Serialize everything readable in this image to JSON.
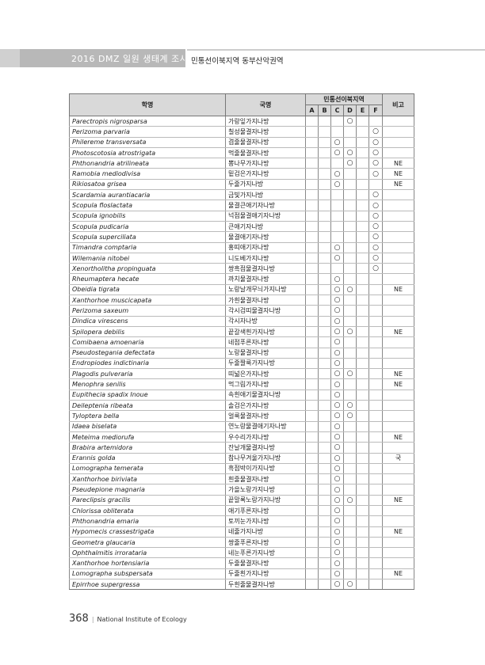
{
  "header": {
    "title": "2016 DMZ 일원 생태계 조사",
    "subtitle": "민통선이북지역 동부산악권역"
  },
  "table": {
    "col_scientific": "학명",
    "col_korean": "국명",
    "col_region": "민통선이북지역",
    "col_note": "비고",
    "sites": [
      "A",
      "B",
      "C",
      "D",
      "E",
      "F"
    ],
    "rows": [
      {
        "sci": "Parectropis nigrosparsa",
        "kor": "가랑잎가지나방",
        "marks": [
          "",
          "",
          "",
          "○",
          "",
          ""
        ],
        "note": ""
      },
      {
        "sci": "Perizoma parvaria",
        "kor": "칠성물결자나방",
        "marks": [
          "",
          "",
          "",
          "",
          "",
          "○"
        ],
        "note": ""
      },
      {
        "sci": "Philereme transversata",
        "kor": "겹줄물결자나방",
        "marks": [
          "",
          "",
          "○",
          "",
          "",
          "○"
        ],
        "note": ""
      },
      {
        "sci": "Photoscotosia atrostrigata",
        "kor": "먹줄물결자나방",
        "marks": [
          "",
          "",
          "○",
          "○",
          "",
          "○"
        ],
        "note": ""
      },
      {
        "sci": "Phthonandria atrilineata",
        "kor": "뽕나무가지나방",
        "marks": [
          "",
          "",
          "",
          "○",
          "",
          "○"
        ],
        "note": "NE"
      },
      {
        "sci": "Ramobia mediodivisa",
        "kor": "밑검은가지나방",
        "marks": [
          "",
          "",
          "○",
          "",
          "",
          "○"
        ],
        "note": "NE"
      },
      {
        "sci": "Rikiosatoa grisea",
        "kor": "두줄가지나방",
        "marks": [
          "",
          "",
          "○",
          "",
          "",
          ""
        ],
        "note": "NE"
      },
      {
        "sci": "Scardamia aurantiacaria",
        "kor": "금빛가지나방",
        "marks": [
          "",
          "",
          "",
          "",
          "",
          "○"
        ],
        "note": ""
      },
      {
        "sci": "Scopula floslactata",
        "kor": "물결큰애기자나방",
        "marks": [
          "",
          "",
          "",
          "",
          "",
          "○"
        ],
        "note": ""
      },
      {
        "sci": "Scopula ignobilis",
        "kor": "넉점물결애기자나방",
        "marks": [
          "",
          "",
          "",
          "",
          "",
          "○"
        ],
        "note": ""
      },
      {
        "sci": "Scopula pudicaria",
        "kor": "큰애기자나방",
        "marks": [
          "",
          "",
          "",
          "",
          "",
          "○"
        ],
        "note": ""
      },
      {
        "sci": "Scopula superciliata",
        "kor": "물결애기자나방",
        "marks": [
          "",
          "",
          "",
          "",
          "",
          "○"
        ],
        "note": ""
      },
      {
        "sci": "Timandra comptaria",
        "kor": "홍띠애기자나방",
        "marks": [
          "",
          "",
          "○",
          "",
          "",
          "○"
        ],
        "note": ""
      },
      {
        "sci": "Wilemania nitobei",
        "kor": "니도베가지나방",
        "marks": [
          "",
          "",
          "○",
          "",
          "",
          "○"
        ],
        "note": ""
      },
      {
        "sci": "Xenortholitha propinguata",
        "kor": "쌍흑점물결자나방",
        "marks": [
          "",
          "",
          "",
          "",
          "",
          "○"
        ],
        "note": ""
      },
      {
        "sci": "Rheumaptera hecate",
        "kor": "까치물결자나방",
        "marks": [
          "",
          "",
          "○",
          "",
          "",
          ""
        ],
        "note": ""
      },
      {
        "sci": "Obeidia tigrata",
        "kor": "노랑날개무늬가지나방",
        "marks": [
          "",
          "",
          "○",
          "○",
          "",
          ""
        ],
        "note": "NE"
      },
      {
        "sci": "Xanthorhoe muscicapata",
        "kor": "가흰물결자나방",
        "marks": [
          "",
          "",
          "○",
          "",
          "",
          ""
        ],
        "note": ""
      },
      {
        "sci": "Perizoma saxeum",
        "kor": "각시검띠물결자나방",
        "marks": [
          "",
          "",
          "○",
          "",
          "",
          ""
        ],
        "note": ""
      },
      {
        "sci": "Dindica virescens",
        "kor": "각시자나방",
        "marks": [
          "",
          "",
          "○",
          "",
          "",
          ""
        ],
        "note": ""
      },
      {
        "sci": "Spilopera debilis",
        "kor": "끝갈색흰가지나방",
        "marks": [
          "",
          "",
          "○",
          "○",
          "",
          ""
        ],
        "note": "NE"
      },
      {
        "sci": "Comibaena amoenaria",
        "kor": "네점푸른자나방",
        "marks": [
          "",
          "",
          "○",
          "",
          "",
          ""
        ],
        "note": ""
      },
      {
        "sci": "Pseudostegania defectata",
        "kor": "노랑물결자나방",
        "marks": [
          "",
          "",
          "○",
          "",
          "",
          ""
        ],
        "note": ""
      },
      {
        "sci": "Endropiodes indictinaria",
        "kor": "두줄짤룩가지나방",
        "marks": [
          "",
          "",
          "○",
          "",
          "",
          ""
        ],
        "note": ""
      },
      {
        "sci": "Plagodis pulveraria",
        "kor": "띠넓은가지나방",
        "marks": [
          "",
          "",
          "○",
          "○",
          "",
          ""
        ],
        "note": "NE"
      },
      {
        "sci": "Menophra senilis",
        "kor": "먹그림가지나방",
        "marks": [
          "",
          "",
          "○",
          "",
          "",
          ""
        ],
        "note": "NE"
      },
      {
        "sci": "Eupithecia spadix Inoue",
        "kor": "속흰애기물결자나방",
        "marks": [
          "",
          "",
          "○",
          "",
          "",
          ""
        ],
        "note": ""
      },
      {
        "sci": "Deileptenia ribeata",
        "kor": "솔검은가지나방",
        "marks": [
          "",
          "",
          "○",
          "○",
          "",
          ""
        ],
        "note": ""
      },
      {
        "sci": "Tyloptera bella",
        "kor": "얼룩물결자나방",
        "marks": [
          "",
          "",
          "○",
          "○",
          "",
          ""
        ],
        "note": ""
      },
      {
        "sci": "Idaea biselata",
        "kor": "연노랑물결애기자나방",
        "marks": [
          "",
          "",
          "○",
          "",
          "",
          ""
        ],
        "note": ""
      },
      {
        "sci": "Meteima mediorufa",
        "kor": "우수리가지나방",
        "marks": [
          "",
          "",
          "○",
          "",
          "",
          ""
        ],
        "note": "NE"
      },
      {
        "sci": "Brabira artemidora",
        "kor": "잔날개물결자나방",
        "marks": [
          "",
          "",
          "○",
          "",
          "",
          ""
        ],
        "note": ""
      },
      {
        "sci": "Erannis golda",
        "kor": "참나무겨울가지나방",
        "marks": [
          "",
          "",
          "○",
          "",
          "",
          ""
        ],
        "note": "국"
      },
      {
        "sci": "Lomographa temerata",
        "kor": "흑점박이가지나방",
        "marks": [
          "",
          "",
          "○",
          "",
          "",
          ""
        ],
        "note": ""
      },
      {
        "sci": "Xanthorhoe biriviata",
        "kor": "흰줄물결자나방",
        "marks": [
          "",
          "",
          "○",
          "",
          "",
          ""
        ],
        "note": ""
      },
      {
        "sci": "Pseudepione magnaria",
        "kor": "가을노랑가지나방",
        "marks": [
          "",
          "",
          "○",
          "",
          "",
          ""
        ],
        "note": ""
      },
      {
        "sci": "Pareclipsis gracilis",
        "kor": "끝말록노랑가지나방",
        "marks": [
          "",
          "",
          "○",
          "○",
          "",
          ""
        ],
        "note": "NE"
      },
      {
        "sci": "Chlorissa obliterata",
        "kor": "애기푸른자나방",
        "marks": [
          "",
          "",
          "○",
          "",
          "",
          ""
        ],
        "note": ""
      },
      {
        "sci": "Phthonandria emaria",
        "kor": "토끼눈가지나방",
        "marks": [
          "",
          "",
          "○",
          "",
          "",
          ""
        ],
        "note": ""
      },
      {
        "sci": "Hypomecis crassestrigata",
        "kor": "네줄가지나방",
        "marks": [
          "",
          "",
          "○",
          "",
          "",
          ""
        ],
        "note": "NE"
      },
      {
        "sci": "Geometra glaucaria",
        "kor": "쌍줄푸른자나방",
        "marks": [
          "",
          "",
          "○",
          "",
          "",
          ""
        ],
        "note": ""
      },
      {
        "sci": "Ophthalmitis irrorataria",
        "kor": "네눈푸른가지나방",
        "marks": [
          "",
          "",
          "○",
          "",
          "",
          ""
        ],
        "note": ""
      },
      {
        "sci": "Xanthorhoe hortensiaria",
        "kor": "두줄물결자나방",
        "marks": [
          "",
          "",
          "○",
          "",
          "",
          ""
        ],
        "note": ""
      },
      {
        "sci": "Lomographa subspersata",
        "kor": "두줄흰가지나방",
        "marks": [
          "",
          "",
          "○",
          "",
          "",
          ""
        ],
        "note": "NE"
      },
      {
        "sci": "Epirrhoe supergressa",
        "kor": "두흰줄물결자나방",
        "marks": [
          "",
          "",
          "○",
          "○",
          "",
          ""
        ],
        "note": ""
      }
    ]
  },
  "footer": {
    "page_number": "368",
    "separator": "|",
    "organization": "National Institute of Ecology"
  }
}
